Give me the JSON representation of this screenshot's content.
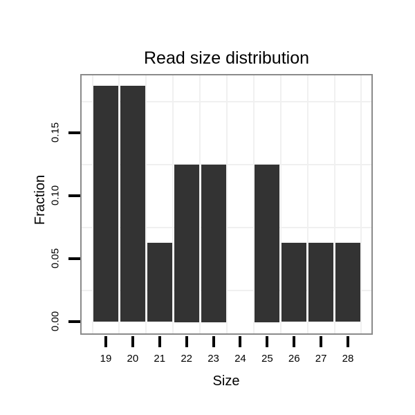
{
  "chart_data": {
    "type": "bar",
    "title": "Read size distribution",
    "xlabel": "Size",
    "ylabel": "Fraction",
    "categories": [
      19,
      20,
      21,
      22,
      23,
      24,
      25,
      26,
      27,
      28
    ],
    "values": [
      0.1875,
      0.1875,
      0.0625,
      0.125,
      0.125,
      0,
      0.125,
      0.0625,
      0.0625,
      0.0625
    ],
    "x_tick_labels": [
      "19",
      "20",
      "21",
      "22",
      "23",
      "24",
      "25",
      "26",
      "27",
      "28"
    ],
    "y_ticks": [
      0,
      0.05,
      0.1,
      0.15
    ],
    "y_tick_labels": [
      "0.00",
      "0.05",
      "0.10",
      "0.15"
    ],
    "ylim": [
      -0.0095,
      0.196
    ],
    "xlim": [
      18.05,
      28.95
    ],
    "grid": "minor gridlines only",
    "minor_y_gridlines": [
      0.025,
      0.075,
      0.125,
      0.175
    ],
    "minor_x_gridlines": [
      18.5,
      19.5,
      20.5,
      21.5,
      22.5,
      23.5,
      24.5,
      25.5,
      26.5,
      27.5,
      28.5
    ],
    "legend": "none",
    "colors": {
      "bar_fill": "#333333",
      "panel_border": "#8a8a8a",
      "gridline": "#f0f0f0",
      "axis_tick": "#000000",
      "text": "#000000",
      "background": "#ffffff"
    }
  }
}
